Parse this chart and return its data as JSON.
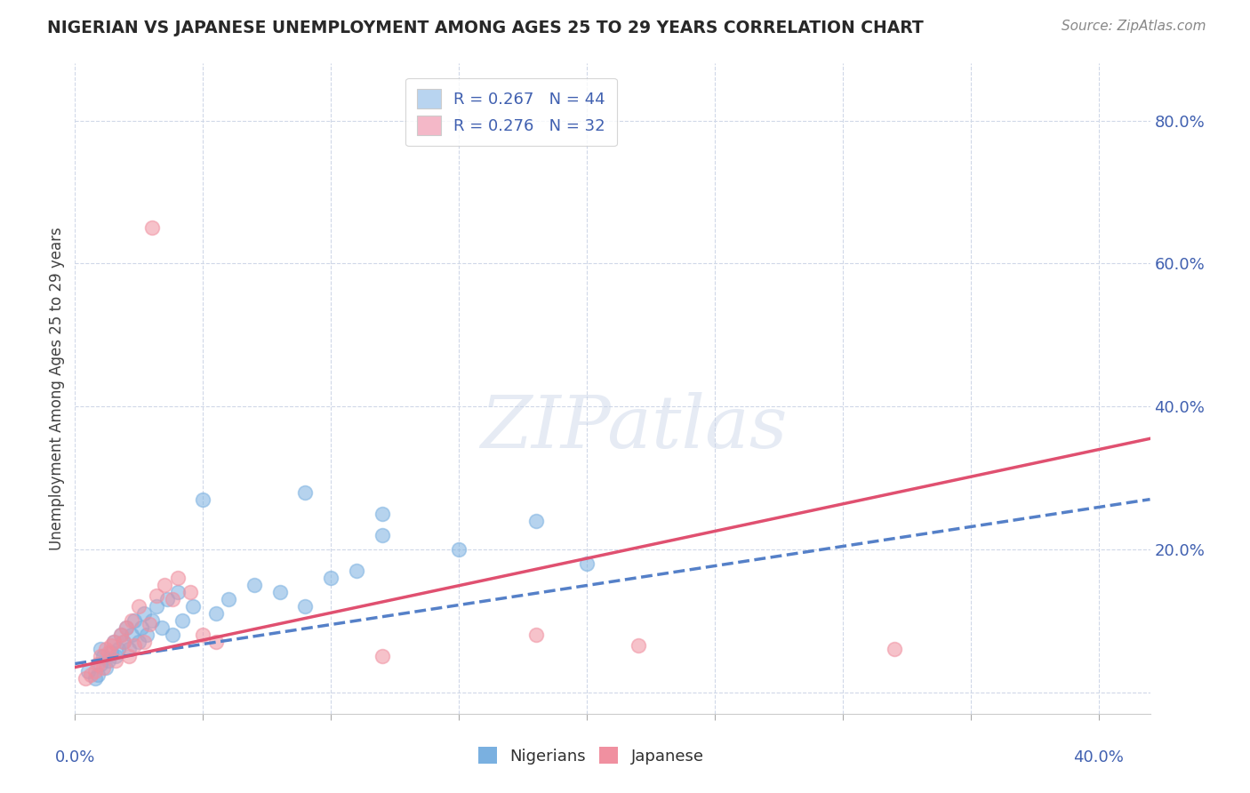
{
  "title": "NIGERIAN VS JAPANESE UNEMPLOYMENT AMONG AGES 25 TO 29 YEARS CORRELATION CHART",
  "source": "Source: ZipAtlas.com",
  "ylabel": "Unemployment Among Ages 25 to 29 years",
  "ytick_values": [
    0.0,
    0.2,
    0.4,
    0.6,
    0.8
  ],
  "xlim": [
    0.0,
    0.42
  ],
  "ylim": [
    -0.03,
    0.88
  ],
  "legend_entries": [
    {
      "label": "R = 0.267   N = 44",
      "color": "#b8d4f0"
    },
    {
      "label": "R = 0.276   N = 32",
      "color": "#f4b8c8"
    }
  ],
  "nigerian_color": "#7ab0e0",
  "japanese_color": "#f090a0",
  "nigerian_line_color": "#5580c8",
  "japanese_line_color": "#e05070",
  "nigerian_scatter_x": [
    0.005,
    0.008,
    0.009,
    0.01,
    0.01,
    0.011,
    0.012,
    0.013,
    0.014,
    0.015,
    0.016,
    0.017,
    0.018,
    0.019,
    0.02,
    0.021,
    0.022,
    0.023,
    0.025,
    0.026,
    0.027,
    0.028,
    0.03,
    0.032,
    0.034,
    0.036,
    0.038,
    0.04,
    0.042,
    0.046,
    0.05,
    0.055,
    0.06,
    0.07,
    0.08,
    0.09,
    0.1,
    0.11,
    0.12,
    0.15,
    0.18,
    0.2,
    0.12,
    0.09
  ],
  "nigerian_scatter_y": [
    0.03,
    0.02,
    0.025,
    0.04,
    0.06,
    0.05,
    0.035,
    0.045,
    0.055,
    0.07,
    0.05,
    0.06,
    0.08,
    0.07,
    0.09,
    0.06,
    0.08,
    0.1,
    0.07,
    0.09,
    0.11,
    0.08,
    0.1,
    0.12,
    0.09,
    0.13,
    0.08,
    0.14,
    0.1,
    0.12,
    0.27,
    0.11,
    0.13,
    0.15,
    0.14,
    0.12,
    0.16,
    0.17,
    0.22,
    0.2,
    0.24,
    0.18,
    0.25,
    0.28
  ],
  "japanese_scatter_x": [
    0.004,
    0.006,
    0.008,
    0.009,
    0.01,
    0.011,
    0.012,
    0.013,
    0.014,
    0.015,
    0.016,
    0.018,
    0.019,
    0.02,
    0.021,
    0.022,
    0.023,
    0.025,
    0.027,
    0.029,
    0.03,
    0.032,
    0.035,
    0.038,
    0.04,
    0.045,
    0.05,
    0.055,
    0.12,
    0.18,
    0.22,
    0.32
  ],
  "japanese_scatter_y": [
    0.02,
    0.025,
    0.03,
    0.04,
    0.05,
    0.035,
    0.06,
    0.055,
    0.065,
    0.07,
    0.045,
    0.08,
    0.07,
    0.09,
    0.05,
    0.1,
    0.065,
    0.12,
    0.07,
    0.095,
    0.65,
    0.135,
    0.15,
    0.13,
    0.16,
    0.14,
    0.08,
    0.07,
    0.05,
    0.08,
    0.065,
    0.06
  ],
  "nigerian_trend_x": [
    0.0,
    0.42
  ],
  "nigerian_trend_y": [
    0.04,
    0.27
  ],
  "japanese_trend_x": [
    0.0,
    0.42
  ],
  "japanese_trend_y": [
    0.035,
    0.355
  ],
  "background_color": "#ffffff",
  "grid_color": "#d0d8e8",
  "title_color": "#282828",
  "tick_color": "#4060b0"
}
